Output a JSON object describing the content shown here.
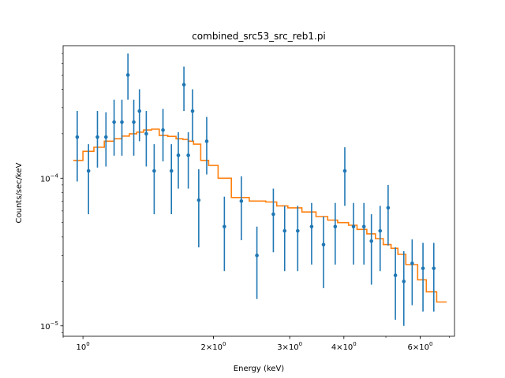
{
  "chart_data": {
    "type": "scatter",
    "title": "combined_src53_src_reb1.pi",
    "xlabel": "Energy (keV)",
    "ylabel": "Counts/sec/keV",
    "xscale": "log",
    "yscale": "log",
    "xlim": [
      0.9,
      7.2
    ],
    "ylim": [
      8.5e-06,
      0.00079
    ],
    "grid": false,
    "x_ticks": [
      {
        "value": 1.0,
        "label": "10^0"
      },
      {
        "value": 2.0,
        "label": "2×10^0"
      },
      {
        "value": 3.0,
        "label": "3×10^0"
      },
      {
        "value": 4.0,
        "label": "4×10^0"
      },
      {
        "value": 6.0,
        "label": "6×10^0"
      }
    ],
    "y_ticks": [
      {
        "value": 1e-05,
        "label": "10^−5"
      },
      {
        "value": 0.0001,
        "label": "10^−4"
      }
    ],
    "data_color": "#1f77b4",
    "model_color": "#ff7f0e",
    "data": {
      "x": [
        0.97,
        1.03,
        1.08,
        1.13,
        1.18,
        1.23,
        1.27,
        1.31,
        1.35,
        1.4,
        1.46,
        1.53,
        1.6,
        1.66,
        1.71,
        1.75,
        1.79,
        1.85,
        1.93,
        2.12,
        2.32,
        2.52,
        2.75,
        2.92,
        3.13,
        3.37,
        3.59,
        3.82,
        4.02,
        4.21,
        4.45,
        4.63,
        4.85,
        5.06,
        5.26,
        5.5,
        5.75,
        6.09,
        6.45
      ],
      "y": [
        0.00019,
        0.000112,
        0.00019,
        0.00019,
        0.00024,
        0.00024,
        0.0005,
        0.00024,
        0.000285,
        0.0002,
        0.000112,
        0.000212,
        0.000112,
        0.000143,
        0.00043,
        0.000143,
        0.000285,
        7.1e-05,
        0.000178,
        4.7e-05,
        7e-05,
        3e-05,
        5.7e-05,
        4.4e-05,
        4.4e-05,
        4.7e-05,
        3.55e-05,
        4.7e-05,
        0.000112,
        4.7e-05,
        4.7e-05,
        3.75e-05,
        4.4e-05,
        6.3e-05,
        2.2e-05,
        2e-05,
        2.65e-05,
        2.45e-05,
        2.45e-05
      ],
      "y_low": [
        9.5e-05,
        5.7e-05,
        0.000118,
        0.00012,
        0.000142,
        0.000142,
        0.00034,
        0.000142,
        0.000178,
        0.00012,
        5.7e-05,
        0.00013,
        5.7e-05,
        8.5e-05,
        0.000285,
        8.5e-05,
        0.000178,
        3.4e-05,
        0.000106,
        2.35e-05,
        3.8e-05,
        1.52e-05,
        3.15e-05,
        2.35e-05,
        2.35e-05,
        2.6e-05,
        1.8e-05,
        2.6e-05,
        6.5e-05,
        2.6e-05,
        2.6e-05,
        1.9e-05,
        2.35e-05,
        3.5e-05,
        1.1e-05,
        1e-05,
        1.38e-05,
        1.25e-05,
        1.25e-05
      ],
      "y_high": [
        0.000285,
        0.00017,
        0.000285,
        0.00028,
        0.00034,
        0.00034,
        0.0007,
        0.00034,
        0.0004,
        0.000285,
        0.00017,
        0.000295,
        0.00017,
        0.000205,
        0.00057,
        0.000205,
        0.0004,
        0.000115,
        0.00026,
        7.5e-05,
        0.000103,
        4.7e-05,
        8.5e-05,
        6.5e-05,
        6.5e-05,
        6.8e-05,
        5.5e-05,
        6.8e-05,
        0.000162,
        6.8e-05,
        6.8e-05,
        5.7e-05,
        6.5e-05,
        9e-05,
        3.4e-05,
        3.2e-05,
        3.85e-05,
        3.65e-05,
        3.65e-05
      ]
    },
    "model": {
      "edges": [
        0.95,
        1.0,
        1.06,
        1.12,
        1.18,
        1.23,
        1.28,
        1.33,
        1.38,
        1.44,
        1.5,
        1.57,
        1.64,
        1.7,
        1.75,
        1.8,
        1.87,
        1.95,
        2.05,
        2.2,
        2.42,
        2.64,
        2.8,
        2.97,
        3.2,
        3.45,
        3.67,
        3.87,
        4.1,
        4.29,
        4.52,
        4.73,
        4.93,
        5.14,
        5.33,
        5.56,
        5.92,
        6.2,
        6.55
      ],
      "values": [
        0.000132,
        0.000152,
        0.000162,
        0.000178,
        0.000185,
        0.000193,
        0.0002,
        0.000205,
        0.000212,
        0.000215,
        0.000195,
        0.000192,
        0.000185,
        0.000183,
        0.000178,
        0.00017,
        0.000132,
        0.000122,
        0.0001,
        7.4e-05,
        7e-05,
        6.9e-05,
        6.5e-05,
        6.3e-05,
        5.9e-05,
        5.5e-05,
        5.2e-05,
        5e-05,
        4.8e-05,
        4.5e-05,
        4.2e-05,
        3.9e-05,
        3.55e-05,
        3.35e-05,
        3.05e-05,
        2.6e-05,
        2.05e-05,
        1.7e-05,
        1.45e-05
      ]
    }
  }
}
